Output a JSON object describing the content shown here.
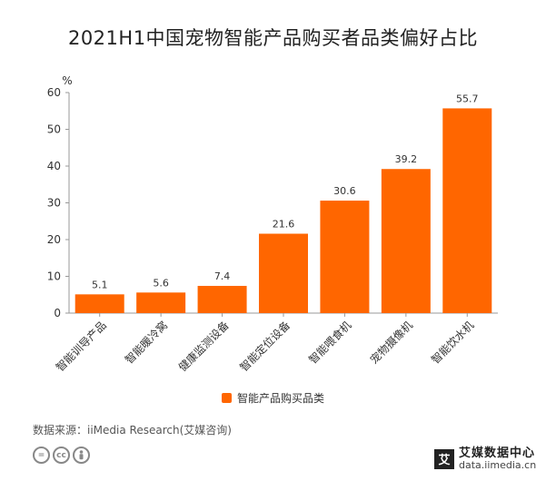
{
  "title": "2021H1中国宠物智能产品购买者品类偏好占比",
  "chart_data": {
    "type": "bar",
    "title": "2021H1中国宠物智能产品购买者品类偏好占比",
    "ylabel": "%",
    "xlabel": "",
    "ylim": [
      0,
      60
    ],
    "yticks": [
      0,
      10,
      20,
      30,
      40,
      50,
      60
    ],
    "categories": [
      "智能训导产品",
      "智能暖冷窝",
      "健康监测设备",
      "智能定位设备",
      "智能喂食机",
      "宠物摄像机",
      "智能饮水机"
    ],
    "series": [
      {
        "name": "智能产品购买品类",
        "values": [
          5.1,
          5.6,
          7.4,
          21.6,
          30.6,
          39.2,
          55.7
        ],
        "color": "#ff6600"
      }
    ],
    "grid": false,
    "legend": "bottom-center"
  },
  "source": "数据来源：iiMedia Research(艾媒咨询)",
  "cc_icons": [
    "cc-icon",
    "by-icon"
  ],
  "logo": {
    "mark": "艾",
    "name": "艾媒数据中心",
    "url": "data.iimedia.cn"
  }
}
